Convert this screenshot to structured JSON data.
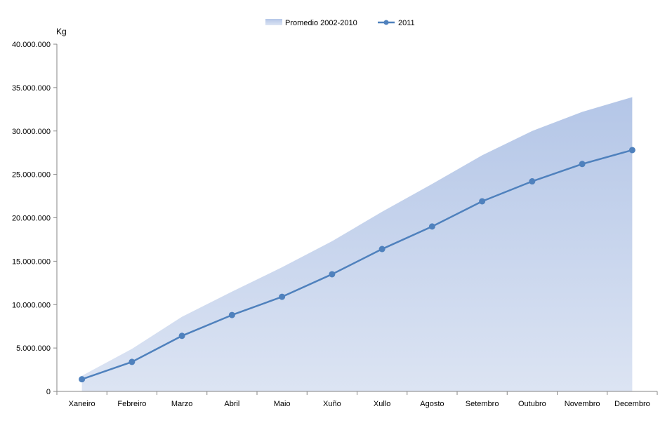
{
  "chart_data": {
    "type": "area",
    "y_unit_label": "Kg",
    "categories": [
      "Xaneiro",
      "Febreiro",
      "Marzo",
      "Abril",
      "Maio",
      "Xuño",
      "Xullo",
      "Agosto",
      "Setembro",
      "Outubro",
      "Novembro",
      "Decembro"
    ],
    "ylim": [
      0,
      40000000
    ],
    "yticks": [
      0,
      5000000,
      10000000,
      15000000,
      20000000,
      25000000,
      30000000,
      35000000,
      40000000
    ],
    "ytick_labels": [
      "0",
      "5.000.000",
      "10.000.000",
      "15.000.000",
      "20.000.000",
      "25.000.000",
      "30.000.000",
      "35.000.000",
      "40.000.000"
    ],
    "grid": false,
    "legend_position": "top-center",
    "series": [
      {
        "name": "Promedio 2002-2010",
        "kind": "area",
        "color_top": "#b4c6e7",
        "color_bottom": "#dce4f3",
        "values": [
          1800000,
          4900000,
          8600000,
          11500000,
          14300000,
          17300000,
          20700000,
          23900000,
          27200000,
          30000000,
          32200000,
          33900000
        ]
      },
      {
        "name": "2011",
        "kind": "line",
        "color": "#4f81bd",
        "values": [
          1400000,
          3400000,
          6400000,
          8800000,
          10900000,
          13500000,
          16400000,
          19000000,
          21900000,
          24200000,
          26200000,
          27800000
        ]
      }
    ]
  }
}
